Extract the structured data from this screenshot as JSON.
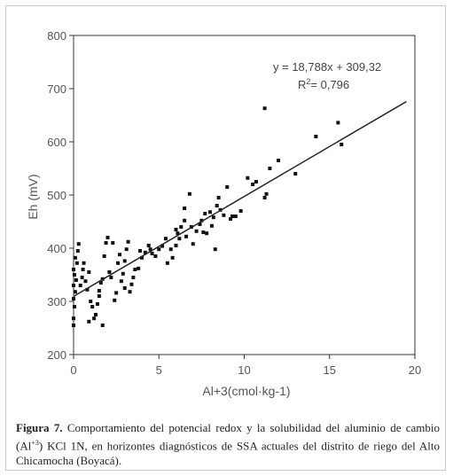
{
  "chart_data": {
    "type": "scatter",
    "xlabel": "Al+3(cmol·kg-1)",
    "ylabel": "Eh (mV)",
    "xlim": [
      0,
      20
    ],
    "ylim": [
      200,
      800
    ],
    "xticks": [
      "0",
      "5",
      "10",
      "15",
      "20"
    ],
    "yticks": [
      "200",
      "300",
      "400",
      "500",
      "600",
      "700",
      "800"
    ],
    "grid": false,
    "trendline": {
      "slope": 18.788,
      "intercept": 309.32,
      "equation": "y = 18,788x + 309,32",
      "r2": "R² = 0,796",
      "r2_label": "R",
      "r2_sup": "2",
      "r2_value": "= 0,796"
    },
    "points": [
      [
        0.0,
        255
      ],
      [
        0.0,
        268
      ],
      [
        0.05,
        290
      ],
      [
        0.0,
        305
      ],
      [
        0.1,
        318
      ],
      [
        0.0,
        330
      ],
      [
        0.15,
        340
      ],
      [
        0.05,
        350
      ],
      [
        0.0,
        360
      ],
      [
        0.2,
        372
      ],
      [
        0.1,
        382
      ],
      [
        0.3,
        408
      ],
      [
        0.25,
        395
      ],
      [
        0.4,
        330
      ],
      [
        0.5,
        345
      ],
      [
        0.55,
        360
      ],
      [
        0.6,
        372
      ],
      [
        0.7,
        338
      ],
      [
        0.8,
        322
      ],
      [
        0.9,
        355
      ],
      [
        1.0,
        300
      ],
      [
        1.1,
        290
      ],
      [
        1.2,
        268
      ],
      [
        1.3,
        275
      ],
      [
        0.9,
        262
      ],
      [
        1.5,
        320
      ],
      [
        1.6,
        335
      ],
      [
        1.7,
        342
      ],
      [
        1.5,
        310
      ],
      [
        1.4,
        295
      ],
      [
        1.8,
        385
      ],
      [
        1.9,
        410
      ],
      [
        2.0,
        420
      ],
      [
        2.1,
        355
      ],
      [
        2.2,
        345
      ],
      [
        1.7,
        255
      ],
      [
        2.4,
        302
      ],
      [
        2.5,
        316
      ],
      [
        2.6,
        372
      ],
      [
        2.7,
        388
      ],
      [
        2.8,
        338
      ],
      [
        2.9,
        352
      ],
      [
        3.0,
        325
      ],
      [
        3.1,
        398
      ],
      [
        3.2,
        412
      ],
      [
        3.3,
        318
      ],
      [
        3.4,
        332
      ],
      [
        3.5,
        345
      ],
      [
        3.6,
        360
      ],
      [
        3.0,
        376
      ],
      [
        2.3,
        410
      ],
      [
        3.8,
        362
      ],
      [
        3.9,
        395
      ],
      [
        4.0,
        382
      ],
      [
        4.2,
        392
      ],
      [
        4.4,
        405
      ],
      [
        4.5,
        398
      ],
      [
        4.8,
        385
      ],
      [
        5.0,
        398
      ],
      [
        5.2,
        404
      ],
      [
        5.5,
        372
      ],
      [
        5.8,
        382
      ],
      [
        6.0,
        405
      ],
      [
        6.2,
        418
      ],
      [
        5.4,
        418
      ],
      [
        5.7,
        398
      ],
      [
        4.6,
        390
      ],
      [
        6.0,
        435
      ],
      [
        6.1,
        428
      ],
      [
        6.3,
        440
      ],
      [
        6.5,
        452
      ],
      [
        6.6,
        422
      ],
      [
        6.8,
        502
      ],
      [
        6.9,
        440
      ],
      [
        7.0,
        408
      ],
      [
        7.2,
        432
      ],
      [
        7.4,
        445
      ],
      [
        7.5,
        452
      ],
      [
        7.6,
        430
      ],
      [
        7.8,
        428
      ],
      [
        8.0,
        468
      ],
      [
        8.2,
        458
      ],
      [
        8.4,
        480
      ],
      [
        8.5,
        495
      ],
      [
        8.6,
        472
      ],
      [
        8.8,
        462
      ],
      [
        9.0,
        515
      ],
      [
        9.2,
        455
      ],
      [
        9.5,
        460
      ],
      [
        9.8,
        470
      ],
      [
        10.2,
        532
      ],
      [
        10.5,
        520
      ],
      [
        10.7,
        525
      ],
      [
        8.3,
        398
      ],
      [
        7.7,
        465
      ],
      [
        11.2,
        495
      ],
      [
        11.3,
        502
      ],
      [
        11.5,
        550
      ],
      [
        12.0,
        565
      ],
      [
        11.2,
        663
      ],
      [
        13.0,
        540
      ],
      [
        14.2,
        610
      ],
      [
        15.5,
        636
      ],
      [
        15.7,
        595
      ],
      [
        6.5,
        475
      ],
      [
        9.3,
        460
      ],
      [
        8.1,
        442
      ]
    ]
  },
  "caption": {
    "label": "Figura 7.",
    "text": "Comportamiento del potencial redox y la solubilidad del aluminio de cambio (Al",
    "sup": "+3",
    "text2": ") KCl 1N, en horizontes diagnósticos de SSA actuales del distrito de riego del Alto Chicamocha (Boyacá)."
  }
}
